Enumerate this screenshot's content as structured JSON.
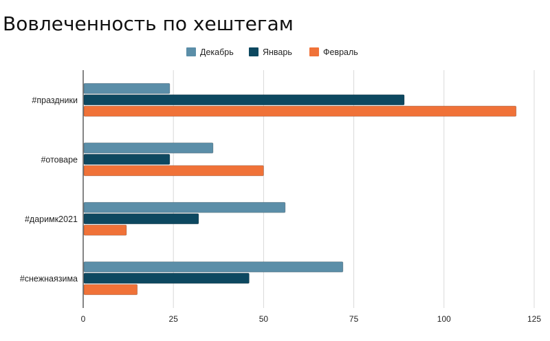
{
  "chart_data": {
    "type": "bar",
    "orientation": "horizontal",
    "title": "Вовлеченность по хештегам",
    "categories": [
      "#праздники",
      "#отоваре",
      "#даримк2021",
      "#снежнаязима"
    ],
    "series": [
      {
        "name": "Декабрь",
        "values": [
          24,
          36,
          56,
          72
        ],
        "color": "#5b8ea8"
      },
      {
        "name": "Январь",
        "values": [
          89,
          24,
          32,
          46
        ],
        "color": "#0d4860"
      },
      {
        "name": "Февраль",
        "values": [
          120,
          50,
          12,
          15
        ],
        "color": "#f07238"
      }
    ],
    "xlim": [
      0,
      125
    ],
    "xticks": [
      "0",
      "25",
      "50",
      "75",
      "100",
      "125"
    ],
    "grid": true,
    "legend": "top"
  }
}
